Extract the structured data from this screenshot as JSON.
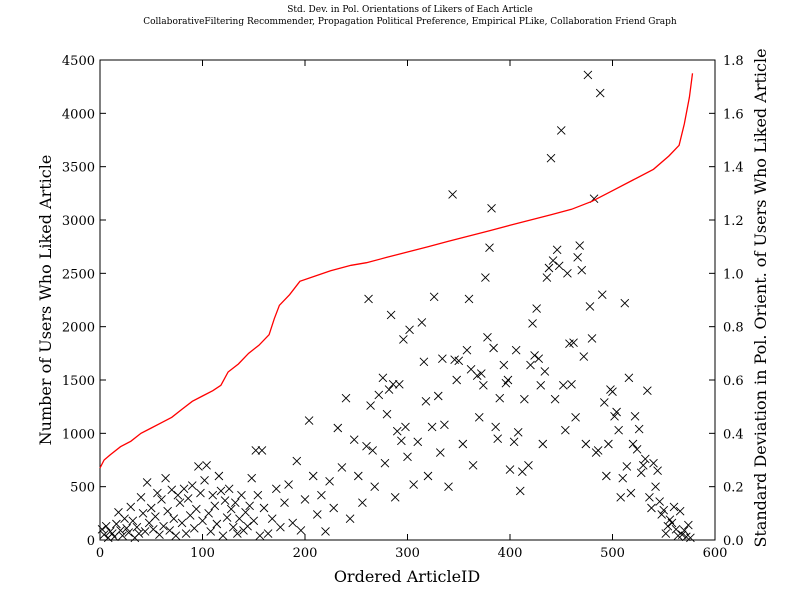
{
  "chart_data": {
    "type": "scatter",
    "title": "Std. Dev. in Pol. Orientations of Likers of Each Article",
    "subtitle": "CollaborativeFiltering Recommender, Propagation Political Preference, Empirical PLike, Collaboration Friend Graph",
    "xlabel": "Ordered ArticleID",
    "ylabel": "Number of Users Who Liked Article",
    "y2label": "Standard Deviation in Pol. Orient. of Users Who Liked Article",
    "xlim": [
      0,
      600
    ],
    "ylim": [
      0,
      4500
    ],
    "y2lim": [
      0,
      1.8
    ],
    "x_ticks": [
      0,
      100,
      200,
      300,
      400,
      500,
      600
    ],
    "y_ticks": [
      0,
      500,
      1000,
      1500,
      2000,
      2500,
      3000,
      3500,
      4000,
      4500
    ],
    "y2_ticks": [
      "0.0",
      "0.2",
      "0.4",
      "0.6",
      "0.8",
      "1.0",
      "1.2",
      "1.4",
      "1.6",
      "1.8"
    ],
    "grid": false,
    "colors": {
      "scatter": "#000000",
      "line": "#ff0000",
      "y2label": "#ff0000"
    },
    "series": [
      {
        "axis": "left",
        "style": "x-markers",
        "points": [
          [
            2,
            100
          ],
          [
            4,
            50
          ],
          [
            6,
            130
          ],
          [
            8,
            20
          ],
          [
            10,
            80
          ],
          [
            12,
            60
          ],
          [
            14,
            30
          ],
          [
            16,
            150
          ],
          [
            18,
            260
          ],
          [
            20,
            90
          ],
          [
            22,
            40
          ],
          [
            24,
            200
          ],
          [
            26,
            110
          ],
          [
            28,
            70
          ],
          [
            30,
            310
          ],
          [
            32,
            180
          ],
          [
            34,
            20
          ],
          [
            36,
            120
          ],
          [
            38,
            60
          ],
          [
            40,
            400
          ],
          [
            42,
            250
          ],
          [
            44,
            80
          ],
          [
            46,
            540
          ],
          [
            48,
            160
          ],
          [
            50,
            300
          ],
          [
            52,
            100
          ],
          [
            54,
            220
          ],
          [
            56,
            440
          ],
          [
            58,
            50
          ],
          [
            60,
            380
          ],
          [
            62,
            130
          ],
          [
            64,
            580
          ],
          [
            66,
            270
          ],
          [
            68,
            90
          ],
          [
            70,
            470
          ],
          [
            72,
            200
          ],
          [
            74,
            40
          ],
          [
            76,
            420
          ],
          [
            78,
            350
          ],
          [
            80,
            160
          ],
          [
            82,
            480
          ],
          [
            84,
            60
          ],
          [
            86,
            390
          ],
          [
            88,
            230
          ],
          [
            90,
            510
          ],
          [
            92,
            110
          ],
          [
            94,
            290
          ],
          [
            96,
            690
          ],
          [
            98,
            440
          ],
          [
            100,
            180
          ],
          [
            102,
            560
          ],
          [
            104,
            700
          ],
          [
            106,
            250
          ],
          [
            108,
            80
          ],
          [
            110,
            420
          ],
          [
            112,
            320
          ],
          [
            114,
            150
          ],
          [
            116,
            600
          ],
          [
            118,
            460
          ],
          [
            120,
            40
          ],
          [
            122,
            370
          ],
          [
            124,
            210
          ],
          [
            126,
            480
          ],
          [
            128,
            290
          ],
          [
            130,
            120
          ],
          [
            132,
            350
          ],
          [
            134,
            60
          ],
          [
            136,
            200
          ],
          [
            138,
            420
          ],
          [
            140,
            90
          ],
          [
            142,
            260
          ],
          [
            144,
            130
          ],
          [
            146,
            320
          ],
          [
            148,
            580
          ],
          [
            150,
            180
          ],
          [
            152,
            840
          ],
          [
            154,
            420
          ],
          [
            156,
            40
          ],
          [
            158,
            840
          ],
          [
            160,
            300
          ],
          [
            164,
            60
          ],
          [
            168,
            200
          ],
          [
            172,
            480
          ],
          [
            176,
            120
          ],
          [
            180,
            350
          ],
          [
            184,
            520
          ],
          [
            188,
            160
          ],
          [
            192,
            740
          ],
          [
            196,
            90
          ],
          [
            200,
            380
          ],
          [
            204,
            1120
          ],
          [
            208,
            600
          ],
          [
            212,
            240
          ],
          [
            216,
            420
          ],
          [
            220,
            80
          ],
          [
            224,
            550
          ],
          [
            228,
            300
          ],
          [
            232,
            1050
          ],
          [
            236,
            680
          ],
          [
            240,
            1330
          ],
          [
            244,
            200
          ],
          [
            248,
            940
          ],
          [
            252,
            600
          ],
          [
            256,
            350
          ],
          [
            260,
            880
          ],
          [
            262,
            2260
          ],
          [
            264,
            1260
          ],
          [
            266,
            840
          ],
          [
            268,
            500
          ],
          [
            272,
            1360
          ],
          [
            276,
            1520
          ],
          [
            278,
            720
          ],
          [
            280,
            1180
          ],
          [
            282,
            1410
          ],
          [
            284,
            2110
          ],
          [
            286,
            1460
          ],
          [
            288,
            400
          ],
          [
            290,
            1020
          ],
          [
            292,
            1460
          ],
          [
            294,
            930
          ],
          [
            296,
            1880
          ],
          [
            298,
            1060
          ],
          [
            300,
            780
          ],
          [
            302,
            1970
          ],
          [
            306,
            520
          ],
          [
            310,
            920
          ],
          [
            314,
            2040
          ],
          [
            316,
            1670
          ],
          [
            318,
            1300
          ],
          [
            320,
            600
          ],
          [
            324,
            1060
          ],
          [
            326,
            2280
          ],
          [
            330,
            1350
          ],
          [
            332,
            820
          ],
          [
            334,
            1700
          ],
          [
            336,
            1080
          ],
          [
            340,
            500
          ],
          [
            344,
            3240
          ],
          [
            346,
            1690
          ],
          [
            348,
            1500
          ],
          [
            350,
            1680
          ],
          [
            354,
            900
          ],
          [
            358,
            1780
          ],
          [
            360,
            2260
          ],
          [
            362,
            1600
          ],
          [
            364,
            700
          ],
          [
            368,
            1540
          ],
          [
            370,
            1150
          ],
          [
            372,
            1560
          ],
          [
            374,
            1450
          ],
          [
            376,
            2460
          ],
          [
            378,
            1900
          ],
          [
            380,
            2740
          ],
          [
            382,
            3110
          ],
          [
            384,
            1800
          ],
          [
            386,
            1060
          ],
          [
            388,
            950
          ],
          [
            390,
            1330
          ],
          [
            394,
            1640
          ],
          [
            396,
            1470
          ],
          [
            398,
            1500
          ],
          [
            400,
            660
          ],
          [
            404,
            920
          ],
          [
            406,
            1780
          ],
          [
            408,
            1010
          ],
          [
            410,
            460
          ],
          [
            412,
            640
          ],
          [
            414,
            1320
          ],
          [
            418,
            700
          ],
          [
            420,
            1640
          ],
          [
            422,
            2030
          ],
          [
            424,
            1730
          ],
          [
            426,
            2170
          ],
          [
            428,
            1700
          ],
          [
            430,
            1450
          ],
          [
            432,
            900
          ],
          [
            434,
            1580
          ],
          [
            436,
            2460
          ],
          [
            438,
            2550
          ],
          [
            440,
            3580
          ],
          [
            442,
            2620
          ],
          [
            444,
            1320
          ],
          [
            446,
            2720
          ],
          [
            448,
            2570
          ],
          [
            450,
            3840
          ],
          [
            452,
            1450
          ],
          [
            454,
            1030
          ],
          [
            456,
            2500
          ],
          [
            458,
            1840
          ],
          [
            460,
            1460
          ],
          [
            462,
            1850
          ],
          [
            464,
            1150
          ],
          [
            466,
            2650
          ],
          [
            468,
            2760
          ],
          [
            470,
            2530
          ],
          [
            472,
            1720
          ],
          [
            474,
            900
          ],
          [
            476,
            4360
          ],
          [
            478,
            2190
          ],
          [
            480,
            1890
          ],
          [
            482,
            3200
          ],
          [
            484,
            820
          ],
          [
            486,
            840
          ],
          [
            488,
            4190
          ],
          [
            490,
            2300
          ],
          [
            492,
            1290
          ],
          [
            494,
            600
          ],
          [
            496,
            900
          ],
          [
            498,
            1410
          ],
          [
            500,
            1390
          ],
          [
            502,
            1160
          ],
          [
            504,
            1200
          ],
          [
            506,
            1030
          ],
          [
            508,
            400
          ],
          [
            510,
            580
          ],
          [
            512,
            2220
          ],
          [
            514,
            690
          ],
          [
            516,
            1520
          ],
          [
            518,
            440
          ],
          [
            520,
            900
          ],
          [
            522,
            1160
          ],
          [
            524,
            850
          ],
          [
            526,
            1040
          ],
          [
            528,
            630
          ],
          [
            530,
            700
          ],
          [
            532,
            760
          ],
          [
            534,
            1400
          ],
          [
            536,
            400
          ],
          [
            538,
            300
          ],
          [
            540,
            720
          ],
          [
            542,
            500
          ],
          [
            544,
            650
          ],
          [
            546,
            360
          ],
          [
            548,
            240
          ],
          [
            550,
            280
          ],
          [
            552,
            60
          ],
          [
            554,
            130
          ],
          [
            556,
            190
          ],
          [
            558,
            160
          ],
          [
            560,
            310
          ],
          [
            562,
            100
          ],
          [
            564,
            40
          ],
          [
            566,
            270
          ],
          [
            568,
            50
          ],
          [
            570,
            90
          ],
          [
            572,
            30
          ],
          [
            574,
            140
          ],
          [
            576,
            20
          ]
        ]
      },
      {
        "axis": "right",
        "style": "line",
        "points": [
          [
            0,
            0.27
          ],
          [
            4,
            0.3
          ],
          [
            10,
            0.32
          ],
          [
            20,
            0.35
          ],
          [
            30,
            0.37
          ],
          [
            40,
            0.4
          ],
          [
            50,
            0.42
          ],
          [
            60,
            0.44
          ],
          [
            70,
            0.46
          ],
          [
            80,
            0.49
          ],
          [
            90,
            0.52
          ],
          [
            100,
            0.54
          ],
          [
            110,
            0.56
          ],
          [
            118,
            0.58
          ],
          [
            125,
            0.63
          ],
          [
            135,
            0.66
          ],
          [
            145,
            0.7
          ],
          [
            155,
            0.73
          ],
          [
            165,
            0.77
          ],
          [
            170,
            0.83
          ],
          [
            175,
            0.88
          ],
          [
            185,
            0.92
          ],
          [
            195,
            0.97
          ],
          [
            210,
            0.99
          ],
          [
            225,
            1.01
          ],
          [
            245,
            1.03
          ],
          [
            260,
            1.04
          ],
          [
            280,
            1.06
          ],
          [
            300,
            1.08
          ],
          [
            320,
            1.1
          ],
          [
            340,
            1.12
          ],
          [
            360,
            1.14
          ],
          [
            380,
            1.16
          ],
          [
            400,
            1.18
          ],
          [
            420,
            1.2
          ],
          [
            440,
            1.22
          ],
          [
            460,
            1.24
          ],
          [
            480,
            1.27
          ],
          [
            500,
            1.31
          ],
          [
            520,
            1.35
          ],
          [
            540,
            1.39
          ],
          [
            555,
            1.44
          ],
          [
            565,
            1.48
          ],
          [
            570,
            1.56
          ],
          [
            575,
            1.66
          ],
          [
            578,
            1.75
          ]
        ]
      }
    ]
  }
}
